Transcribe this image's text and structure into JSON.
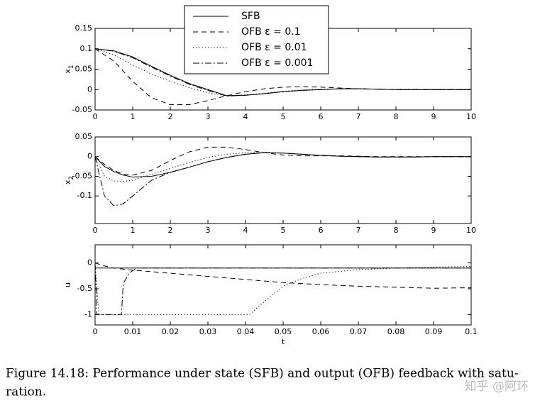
{
  "chart_data": [
    {
      "type": "line",
      "ylabel": "x",
      "ylabel_subscript": "1",
      "xlim": [
        0,
        10
      ],
      "xticks": [
        0,
        1,
        2,
        3,
        4,
        5,
        6,
        7,
        8,
        9,
        10
      ],
      "ylim": [
        -0.05,
        0.15
      ],
      "yticks": [
        0.15,
        0.1,
        0.05,
        0,
        -0.05
      ],
      "legend": "top-center",
      "x": [
        0,
        0.5,
        1,
        1.5,
        2,
        2.5,
        3,
        3.5,
        4,
        4.5,
        5,
        5.5,
        6,
        6.5,
        7,
        7.5,
        8,
        8.5,
        9,
        9.5,
        10
      ],
      "series": [
        {
          "name": "SFB",
          "color": "#000000",
          "style": "solid",
          "values": [
            0.1,
            0.095,
            0.08,
            0.057,
            0.035,
            0.015,
            0.0,
            -0.015,
            -0.014,
            -0.01,
            -0.005,
            -0.002,
            0.0,
            0.002,
            0.002,
            0.001,
            0,
            0,
            0,
            0,
            0
          ]
        },
        {
          "name": "OFB ε = 0.1",
          "color": "#000000",
          "style": "dashed",
          "values": [
            0.1,
            0.07,
            0.02,
            -0.02,
            -0.037,
            -0.037,
            -0.027,
            -0.015,
            -0.005,
            0.002,
            0.006,
            0.007,
            0.006,
            0.004,
            0.002,
            0.001,
            0,
            0,
            0,
            0,
            0
          ]
        },
        {
          "name": "OFB ε = 0.01",
          "color": "#000000",
          "style": "dotted",
          "values": [
            0.1,
            0.085,
            0.06,
            0.038,
            0.02,
            0.005,
            -0.008,
            -0.015,
            -0.013,
            -0.009,
            -0.004,
            -0.001,
            0.001,
            0.002,
            0.002,
            0.001,
            0,
            0,
            0,
            0,
            0
          ]
        },
        {
          "name": "OFB ε = 0.001",
          "color": "#000000",
          "style": "dashdot",
          "values": [
            0.1,
            0.094,
            0.078,
            0.055,
            0.033,
            0.013,
            -0.002,
            -0.016,
            -0.014,
            -0.01,
            -0.005,
            -0.002,
            0,
            0.002,
            0.002,
            0.001,
            0,
            0,
            0,
            0,
            0
          ]
        }
      ]
    },
    {
      "type": "line",
      "ylabel": "x",
      "ylabel_subscript": "2",
      "xlim": [
        0,
        10
      ],
      "xticks": [
        0,
        1,
        2,
        3,
        4,
        5,
        6,
        7,
        8,
        9,
        10
      ],
      "ylim": [
        -0.17,
        0.05
      ],
      "yticks": [
        0.05,
        0,
        -0.05,
        -0.1
      ],
      "x": [
        0,
        0.25,
        0.5,
        0.75,
        1,
        1.5,
        2,
        2.5,
        3,
        3.5,
        4,
        4.5,
        5,
        5.5,
        6,
        6.5,
        7,
        7.5,
        8,
        8.5,
        9,
        9.5,
        10
      ],
      "series": [
        {
          "color": "#000000",
          "style": "solid",
          "values": [
            0,
            -0.025,
            -0.038,
            -0.047,
            -0.052,
            -0.05,
            -0.04,
            -0.027,
            -0.013,
            -0.002,
            0.006,
            0.01,
            0.009,
            0.006,
            0.003,
            0.001,
            0,
            -0.001,
            -0.001,
            -0.001,
            0,
            0,
            0
          ]
        },
        {
          "color": "#000000",
          "style": "dashed",
          "values": [
            0,
            -0.02,
            -0.035,
            -0.045,
            -0.047,
            -0.035,
            -0.01,
            0.012,
            0.024,
            0.024,
            0.018,
            0.01,
            0.004,
            0.002,
            0.002,
            0.002,
            0.001,
            0,
            0,
            0,
            0,
            0,
            0
          ]
        },
        {
          "color": "#000000",
          "style": "dotted",
          "values": [
            0,
            -0.05,
            -0.062,
            -0.063,
            -0.06,
            -0.045,
            -0.03,
            -0.015,
            -0.002,
            0.006,
            0.01,
            0.011,
            0.009,
            0.006,
            0.003,
            0.001,
            0,
            -0.001,
            -0.001,
            -0.001,
            0,
            0,
            0
          ]
        },
        {
          "color": "#000000",
          "style": "dashdot",
          "values": [
            0,
            -0.1,
            -0.125,
            -0.12,
            -0.1,
            -0.06,
            -0.04,
            -0.027,
            -0.013,
            -0.002,
            0.006,
            0.01,
            0.009,
            0.006,
            0.003,
            0.001,
            0,
            -0.001,
            -0.001,
            -0.001,
            0,
            0,
            0
          ]
        }
      ]
    },
    {
      "type": "line",
      "ylabel": "u",
      "xlabel": "t",
      "xlim": [
        0,
        0.1
      ],
      "xticks": [
        0,
        0.01,
        0.02,
        0.03,
        0.04,
        0.05,
        0.06,
        0.07,
        0.08,
        0.09,
        0.1
      ],
      "ylim": [
        -1.2,
        0.35
      ],
      "yticks": [
        0,
        -0.5,
        -1
      ],
      "series": [
        {
          "color": "#000000",
          "style": "solid",
          "x": [
            0,
            0.1
          ],
          "values": [
            -0.1,
            -0.1
          ]
        },
        {
          "color": "#000000",
          "style": "dashed",
          "x": [
            0,
            0.002,
            0.005,
            0.01,
            0.02,
            0.03,
            0.04,
            0.05,
            0.06,
            0.07,
            0.08,
            0.09,
            0.1
          ],
          "values": [
            0.0,
            -0.05,
            -0.1,
            -0.14,
            -0.2,
            -0.26,
            -0.32,
            -0.38,
            -0.42,
            -0.45,
            -0.47,
            -0.49,
            -0.48
          ]
        },
        {
          "color": "#000000",
          "style": "dotted",
          "x": [
            0,
            0.001,
            0.041,
            0.045,
            0.05,
            0.055,
            0.06,
            0.07,
            0.08,
            0.09,
            0.1
          ],
          "values": [
            0,
            -1,
            -1,
            -0.75,
            -0.45,
            -0.3,
            -0.2,
            -0.13,
            -0.1,
            -0.08,
            -0.07
          ]
        },
        {
          "color": "#000000",
          "style": "dashdot",
          "x": [
            0,
            0.0005,
            0.007,
            0.0075,
            0.009,
            0.011,
            0.02,
            0.1
          ],
          "values": [
            0,
            -1,
            -1,
            -0.4,
            -0.2,
            -0.1,
            -0.1,
            -0.1
          ]
        }
      ]
    }
  ],
  "caption": {
    "lines": [
      "Figure 14.18: Performance under state (SFB) and output (OFB) feedback with satu-",
      "ration."
    ]
  },
  "watermark": "知乎 @阿环"
}
